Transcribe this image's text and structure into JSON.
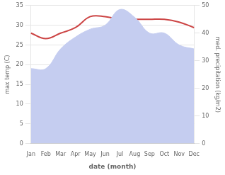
{
  "chart_data": {
    "type": "line",
    "xlabel": "date (month)",
    "ylabel": "max temp (C)",
    "y2label": "med. precipitation (kg/m2)",
    "categories": [
      "Jan",
      "Feb",
      "Mar",
      "Apr",
      "May",
      "Jun",
      "Jul",
      "Aug",
      "Sep",
      "Oct",
      "Nov",
      "Dec"
    ],
    "series": [
      {
        "type": "area",
        "color": "#c5cdf0",
        "values": [
          19,
          19,
          24,
          27,
          29,
          30,
          34,
          32,
          28,
          28,
          25,
          24
        ]
      },
      {
        "type": "line",
        "color": "#cc4444",
        "axis": "y2",
        "values": [
          40,
          38,
          40,
          42,
          46,
          46,
          45,
          45,
          45,
          45,
          44,
          42
        ]
      }
    ],
    "ylim": [
      0,
      35
    ],
    "yticks": [
      0,
      5,
      10,
      15,
      20,
      25,
      30,
      35
    ],
    "y2lim": [
      0,
      50
    ],
    "y2ticks": [
      0,
      10,
      20,
      30,
      40,
      50
    ],
    "grid": true
  }
}
